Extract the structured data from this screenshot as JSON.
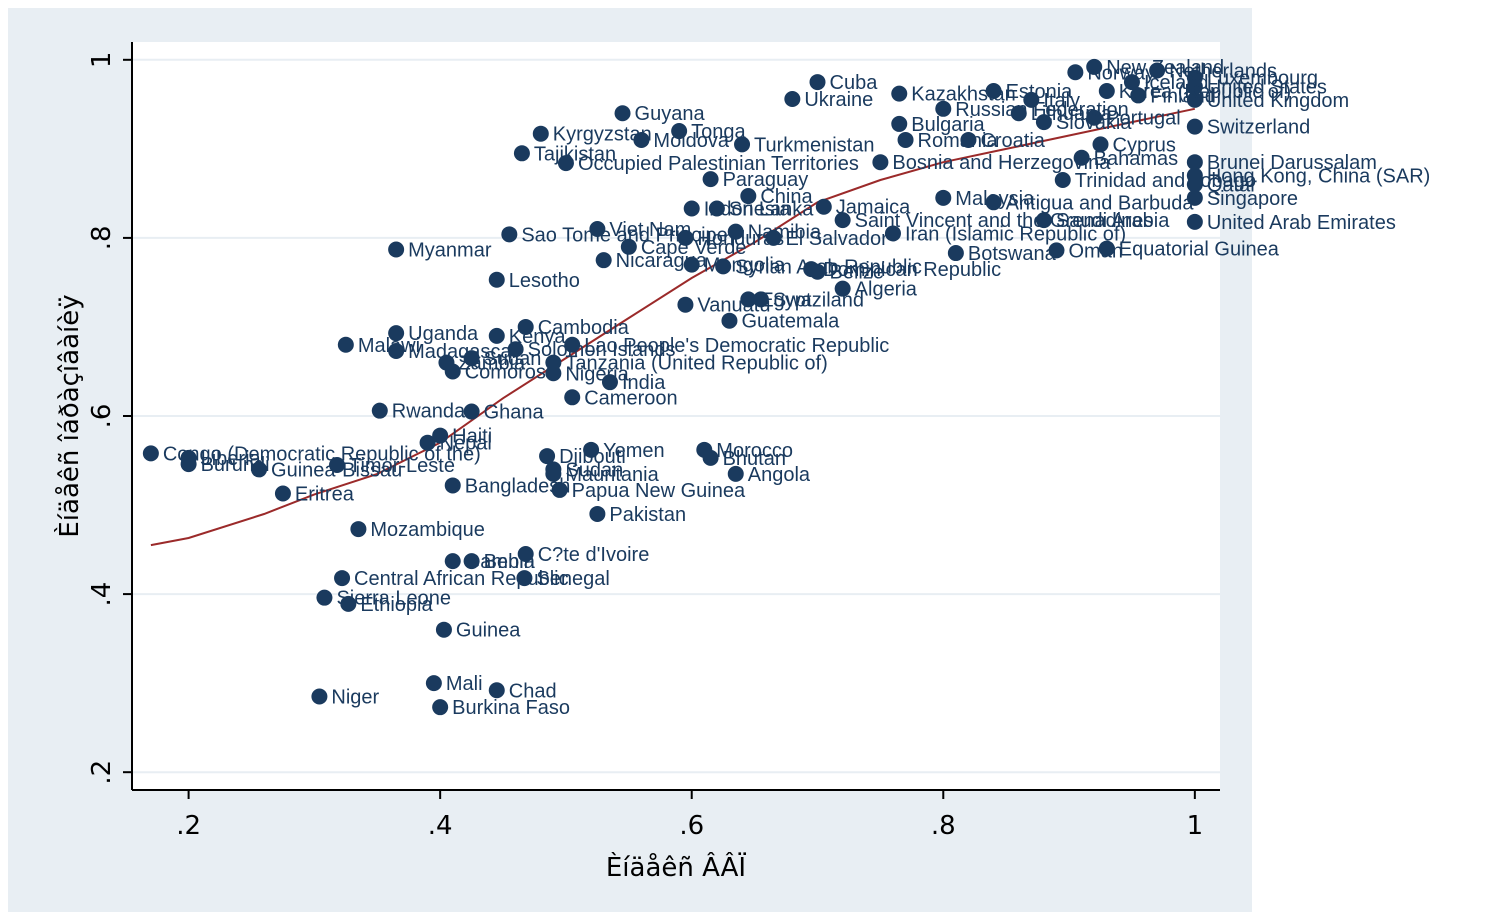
{
  "chart_data": {
    "type": "scatter",
    "xlabel": "Èíäåêñ ÂÂÏ",
    "ylabel": "Èíäåêñ îáðàçîâàíèÿ",
    "xlim": [
      0.155,
      1.02
    ],
    "ylim": [
      0.18,
      1.02
    ],
    "xticks": [
      0.2,
      0.4,
      0.6,
      0.8,
      1.0
    ],
    "xtick_labels": [
      ".2",
      ".4",
      ".6",
      ".8",
      "1"
    ],
    "yticks": [
      0.2,
      0.4,
      0.6,
      0.8,
      1.0
    ],
    "ytick_labels": [
      ".2",
      ".4",
      ".6",
      ".8",
      "1"
    ],
    "grid": true,
    "marker_color": "#1a3a5e",
    "fit_line_color": "#9b2a2a",
    "fit_line": [
      {
        "x": 0.17,
        "y": 0.455
      },
      {
        "x": 0.2,
        "y": 0.463
      },
      {
        "x": 0.26,
        "y": 0.49
      },
      {
        "x": 0.3,
        "y": 0.512
      },
      {
        "x": 0.35,
        "y": 0.535
      },
      {
        "x": 0.4,
        "y": 0.57
      },
      {
        "x": 0.45,
        "y": 0.62
      },
      {
        "x": 0.5,
        "y": 0.665
      },
      {
        "x": 0.55,
        "y": 0.71
      },
      {
        "x": 0.6,
        "y": 0.755
      },
      {
        "x": 0.65,
        "y": 0.795
      },
      {
        "x": 0.7,
        "y": 0.84
      },
      {
        "x": 0.75,
        "y": 0.865
      },
      {
        "x": 0.8,
        "y": 0.885
      },
      {
        "x": 0.85,
        "y": 0.9
      },
      {
        "x": 0.9,
        "y": 0.915
      },
      {
        "x": 0.95,
        "y": 0.93
      },
      {
        "x": 1.0,
        "y": 0.945
      }
    ],
    "points": [
      {
        "x": 0.17,
        "y": 0.558,
        "label": "Congo (Democratic Republic of the)"
      },
      {
        "x": 0.2,
        "y": 0.553,
        "label": "Liberia"
      },
      {
        "x": 0.2,
        "y": 0.546,
        "label": "Burundi"
      },
      {
        "x": 0.256,
        "y": 0.54,
        "label": "Guinea-Bissau"
      },
      {
        "x": 0.318,
        "y": 0.545,
        "label": "Timor-Leste"
      },
      {
        "x": 0.275,
        "y": 0.513,
        "label": "Eritrea"
      },
      {
        "x": 0.335,
        "y": 0.473,
        "label": "Mozambique"
      },
      {
        "x": 0.322,
        "y": 0.418,
        "label": "Central African Republic"
      },
      {
        "x": 0.308,
        "y": 0.396,
        "label": "Sierra Leone"
      },
      {
        "x": 0.327,
        "y": 0.389,
        "label": "Ethiopia"
      },
      {
        "x": 0.304,
        "y": 0.285,
        "label": "Niger"
      },
      {
        "x": 0.395,
        "y": 0.3,
        "label": "Mali"
      },
      {
        "x": 0.4,
        "y": 0.273,
        "label": "Burkina Faso"
      },
      {
        "x": 0.445,
        "y": 0.292,
        "label": "Chad"
      },
      {
        "x": 0.403,
        "y": 0.36,
        "label": "Guinea"
      },
      {
        "x": 0.41,
        "y": 0.437,
        "label": "Gambia"
      },
      {
        "x": 0.425,
        "y": 0.437,
        "label": "Benin"
      },
      {
        "x": 0.468,
        "y": 0.445,
        "label": "C?te d'Ivoire"
      },
      {
        "x": 0.467,
        "y": 0.418,
        "label": "Senegal"
      },
      {
        "x": 0.41,
        "y": 0.522,
        "label": "Bangladesh"
      },
      {
        "x": 0.39,
        "y": 0.57,
        "label": "Nepal"
      },
      {
        "x": 0.4,
        "y": 0.578,
        "label": "Haiti"
      },
      {
        "x": 0.352,
        "y": 0.606,
        "label": "Rwanda"
      },
      {
        "x": 0.425,
        "y": 0.605,
        "label": "Ghana"
      },
      {
        "x": 0.325,
        "y": 0.68,
        "label": "Malawi"
      },
      {
        "x": 0.365,
        "y": 0.673,
        "label": "Madagascar"
      },
      {
        "x": 0.365,
        "y": 0.693,
        "label": "Uganda"
      },
      {
        "x": 0.445,
        "y": 0.69,
        "label": "Kenya"
      },
      {
        "x": 0.468,
        "y": 0.7,
        "label": "Cambodia"
      },
      {
        "x": 0.405,
        "y": 0.66,
        "label": "Zambia"
      },
      {
        "x": 0.425,
        "y": 0.665,
        "label": "Sudan"
      },
      {
        "x": 0.41,
        "y": 0.65,
        "label": "Comoros"
      },
      {
        "x": 0.46,
        "y": 0.675,
        "label": "Solomon Islands"
      },
      {
        "x": 0.49,
        "y": 0.648,
        "label": "Nigeria"
      },
      {
        "x": 0.505,
        "y": 0.68,
        "label": "Lao People's Democratic Republic"
      },
      {
        "x": 0.49,
        "y": 0.66,
        "label": "Tanzania (United Republic of)"
      },
      {
        "x": 0.535,
        "y": 0.638,
        "label": "India"
      },
      {
        "x": 0.505,
        "y": 0.621,
        "label": "Cameroon"
      },
      {
        "x": 0.365,
        "y": 0.787,
        "label": "Myanmar"
      },
      {
        "x": 0.445,
        "y": 0.753,
        "label": "Lesotho"
      },
      {
        "x": 0.455,
        "y": 0.804,
        "label": "Sao Tome and Principe"
      },
      {
        "x": 0.53,
        "y": 0.775,
        "label": "Nicaragua"
      },
      {
        "x": 0.525,
        "y": 0.81,
        "label": "Viet Nam"
      },
      {
        "x": 0.55,
        "y": 0.79,
        "label": "Cape Verde"
      },
      {
        "x": 0.595,
        "y": 0.8,
        "label": "Honduras"
      },
      {
        "x": 0.635,
        "y": 0.807,
        "label": "Namibia"
      },
      {
        "x": 0.665,
        "y": 0.8,
        "label": "El Salvador"
      },
      {
        "x": 0.6,
        "y": 0.77,
        "label": "Mongolia"
      },
      {
        "x": 0.625,
        "y": 0.768,
        "label": "Syrian Arab Republic"
      },
      {
        "x": 0.695,
        "y": 0.765,
        "label": "Dominican Republic"
      },
      {
        "x": 0.7,
        "y": 0.762,
        "label": "Belize"
      },
      {
        "x": 0.72,
        "y": 0.743,
        "label": "Algeria"
      },
      {
        "x": 0.595,
        "y": 0.725,
        "label": "Vanuatu"
      },
      {
        "x": 0.645,
        "y": 0.731,
        "label": "Egypt"
      },
      {
        "x": 0.655,
        "y": 0.731,
        "label": "Swaziland"
      },
      {
        "x": 0.63,
        "y": 0.707,
        "label": "Guatemala"
      },
      {
        "x": 0.485,
        "y": 0.555,
        "label": "Djibouti"
      },
      {
        "x": 0.52,
        "y": 0.562,
        "label": "Yemen"
      },
      {
        "x": 0.49,
        "y": 0.54,
        "label": "Sudan"
      },
      {
        "x": 0.49,
        "y": 0.535,
        "label": "Mauritania"
      },
      {
        "x": 0.495,
        "y": 0.517,
        "label": "Papua New Guinea"
      },
      {
        "x": 0.525,
        "y": 0.49,
        "label": "Pakistan"
      },
      {
        "x": 0.61,
        "y": 0.562,
        "label": "Morocco"
      },
      {
        "x": 0.615,
        "y": 0.553,
        "label": "Bhutan"
      },
      {
        "x": 0.635,
        "y": 0.535,
        "label": "Angola"
      },
      {
        "x": 0.48,
        "y": 0.917,
        "label": "Kyrgyzstan"
      },
      {
        "x": 0.465,
        "y": 0.895,
        "label": "Tajikistan"
      },
      {
        "x": 0.5,
        "y": 0.884,
        "label": "Occupied Palestinian Territories"
      },
      {
        "x": 0.545,
        "y": 0.94,
        "label": "Guyana"
      },
      {
        "x": 0.59,
        "y": 0.92,
        "label": "Tonga"
      },
      {
        "x": 0.56,
        "y": 0.91,
        "label": "Moldova"
      },
      {
        "x": 0.64,
        "y": 0.905,
        "label": "Turkmenistan"
      },
      {
        "x": 0.7,
        "y": 0.975,
        "label": "Cuba"
      },
      {
        "x": 0.68,
        "y": 0.956,
        "label": "Ukraine"
      },
      {
        "x": 0.765,
        "y": 0.962,
        "label": "Kazakhstan"
      },
      {
        "x": 0.615,
        "y": 0.866,
        "label": "Paraguay"
      },
      {
        "x": 0.645,
        "y": 0.847,
        "label": "China"
      },
      {
        "x": 0.6,
        "y": 0.833,
        "label": "Indonesia"
      },
      {
        "x": 0.62,
        "y": 0.833,
        "label": "Sri Lanka"
      },
      {
        "x": 0.705,
        "y": 0.835,
        "label": "Jamaica"
      },
      {
        "x": 0.72,
        "y": 0.82,
        "label": "Saint Vincent and the Grenadines"
      },
      {
        "x": 0.76,
        "y": 0.805,
        "label": "Iran (Islamic Republic of)"
      },
      {
        "x": 0.8,
        "y": 0.845,
        "label": "Malaysia"
      },
      {
        "x": 0.81,
        "y": 0.783,
        "label": "Botswana"
      },
      {
        "x": 0.84,
        "y": 0.84,
        "label": "Antigua and Barbuda"
      },
      {
        "x": 0.765,
        "y": 0.928,
        "label": "Bulgaria"
      },
      {
        "x": 0.77,
        "y": 0.91,
        "label": "Romania"
      },
      {
        "x": 0.82,
        "y": 0.91,
        "label": "Croatia"
      },
      {
        "x": 0.88,
        "y": 0.93,
        "label": "Slovakia"
      },
      {
        "x": 0.89,
        "y": 0.786,
        "label": "Oman"
      },
      {
        "x": 0.93,
        "y": 0.788,
        "label": "Equatorial Guinea"
      },
      {
        "x": 0.925,
        "y": 0.905,
        "label": "Cyprus"
      },
      {
        "x": 0.92,
        "y": 0.935,
        "label": "Portugal"
      },
      {
        "x": 0.895,
        "y": 0.865,
        "label": "Trinidad and Tobago"
      },
      {
        "x": 0.91,
        "y": 0.89,
        "label": "Bahamas"
      },
      {
        "x": 0.88,
        "y": 0.82,
        "label": "Saudi Arabia"
      },
      {
        "x": 1.0,
        "y": 0.818,
        "label": "United Arab Emirates"
      },
      {
        "x": 1.0,
        "y": 0.845,
        "label": "Singapore"
      },
      {
        "x": 1.0,
        "y": 0.86,
        "label": "Qatar"
      },
      {
        "x": 1.0,
        "y": 0.87,
        "label": "Hong Kong, China (SAR)"
      },
      {
        "x": 1.0,
        "y": 0.885,
        "label": "Brunei Darussalam"
      },
      {
        "x": 1.0,
        "y": 0.925,
        "label": "Switzerland"
      },
      {
        "x": 1.0,
        "y": 0.955,
        "label": "United Kingdom"
      },
      {
        "x": 1.0,
        "y": 0.97,
        "label": "United States"
      },
      {
        "x": 1.0,
        "y": 0.98,
        "label": "Luxembourg"
      },
      {
        "x": 0.97,
        "y": 0.988,
        "label": "Netherlands"
      },
      {
        "x": 0.92,
        "y": 0.992,
        "label": "New Zealand"
      },
      {
        "x": 0.905,
        "y": 0.986,
        "label": "Norway"
      },
      {
        "x": 0.95,
        "y": 0.975,
        "label": "Iceland"
      },
      {
        "x": 0.955,
        "y": 0.96,
        "label": "Finland"
      },
      {
        "x": 0.93,
        "y": 0.965,
        "label": "Korea (Republic of)"
      },
      {
        "x": 0.87,
        "y": 0.955,
        "label": "Italy"
      },
      {
        "x": 0.84,
        "y": 0.965,
        "label": "Estonia"
      },
      {
        "x": 0.8,
        "y": 0.945,
        "label": "Russian Federation"
      },
      {
        "x": 0.86,
        "y": 0.94,
        "label": "Lithuania"
      },
      {
        "x": 0.75,
        "y": 0.885,
        "label": "Bosnia and Herzegovina"
      }
    ]
  }
}
